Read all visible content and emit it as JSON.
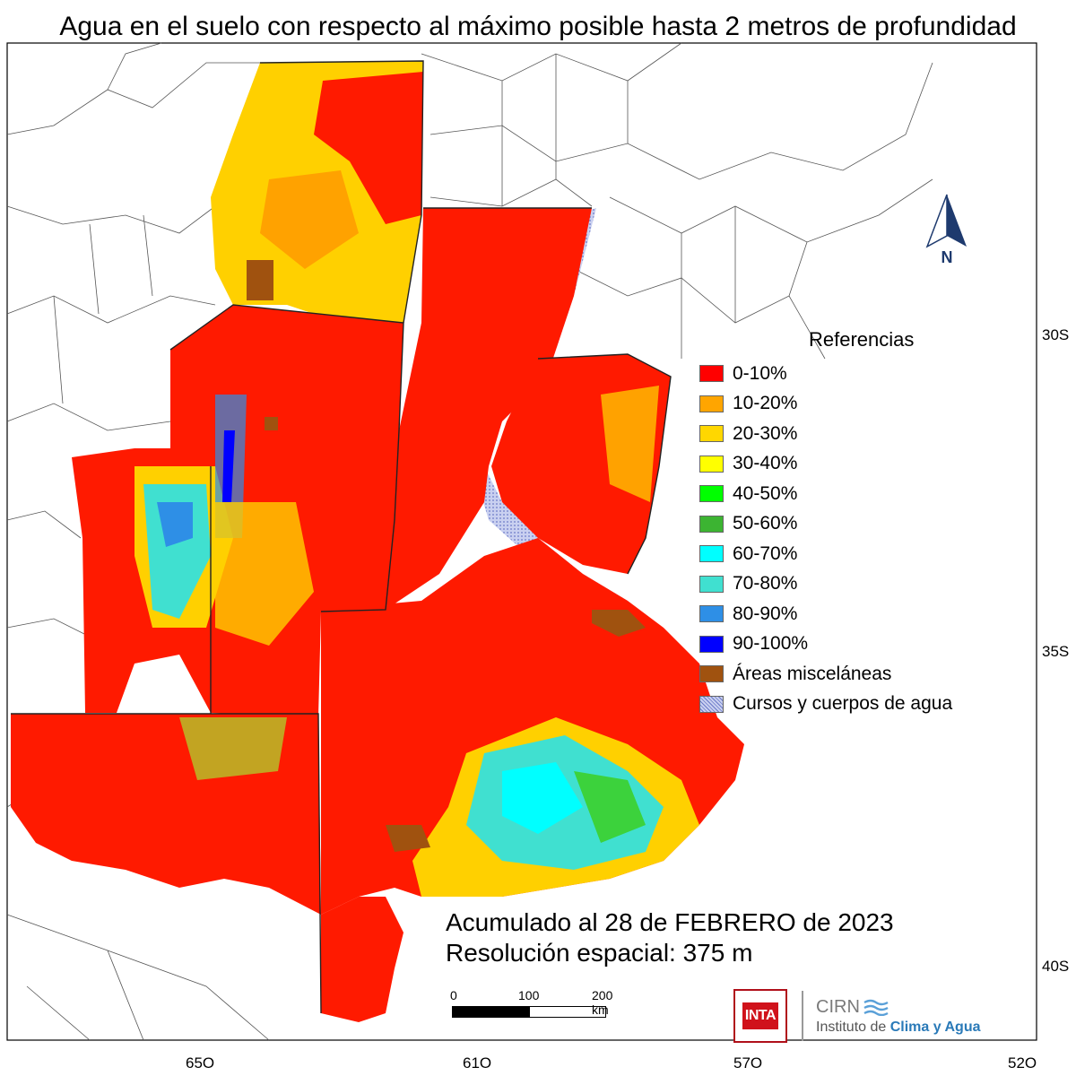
{
  "title": "Agua en el suelo con respecto al máximo posible hasta 2 metros de profundidad",
  "axes": {
    "lon_labels": [
      "65O",
      "61O",
      "57O",
      "52O"
    ],
    "lat_labels": [
      "30S",
      "35S",
      "40S"
    ]
  },
  "north_arrow": {
    "label": "N",
    "icon": "north-arrow-icon"
  },
  "legend": {
    "title": "Referencias",
    "items": [
      {
        "label": "0-10%",
        "color": "#ff0000"
      },
      {
        "label": "10-20%",
        "color": "#ffa500"
      },
      {
        "label": "20-30%",
        "color": "#ffd700"
      },
      {
        "label": "30-40%",
        "color": "#ffff00"
      },
      {
        "label": "40-50%",
        "color": "#00ff00"
      },
      {
        "label": "50-60%",
        "color": "#3cb432"
      },
      {
        "label": "60-70%",
        "color": "#00ffff"
      },
      {
        "label": "70-80%",
        "color": "#40e0d0"
      },
      {
        "label": "80-90%",
        "color": "#2e8fe6"
      },
      {
        "label": "90-100%",
        "color": "#0000ff"
      },
      {
        "label": "Áreas misceláneas",
        "color": "#a0520f"
      },
      {
        "label": "Cursos y cuerpos de agua",
        "color": "#9aa8e0"
      }
    ]
  },
  "annotation": {
    "line1": "Acumulado al 28 de FEBRERO de 2023",
    "line2": "Resolución espacial: 375 m"
  },
  "scale_bar": {
    "ticks": [
      "0",
      "100",
      "200 km"
    ]
  },
  "logos": {
    "inta": "INTA",
    "cirn": "CIRN",
    "institute_prefix": "Instituto de",
    "institute_highlight": "Clima y Agua"
  }
}
